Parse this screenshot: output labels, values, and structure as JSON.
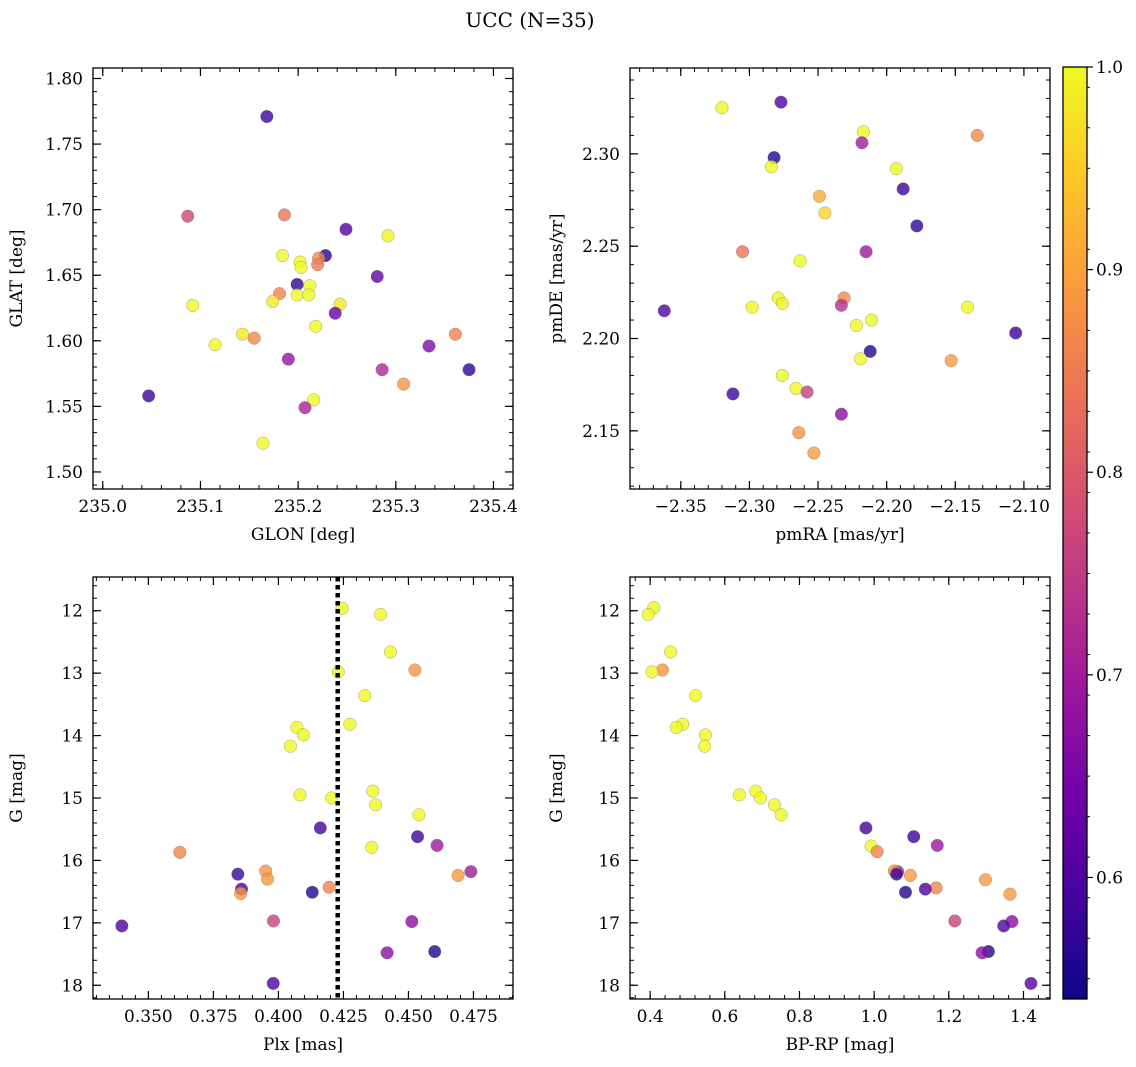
{
  "figure": {
    "title": "UCC (N=35)"
  },
  "colors": {
    "colormap": [
      "#0d0887",
      "#46039f",
      "#7201a8",
      "#9c179e",
      "#bd3786",
      "#d8576b",
      "#ed7953",
      "#fb9f3a",
      "#fdca26",
      "#f0f921"
    ],
    "marker_alpha": 0.8,
    "marker_edge": "#6b6b6b",
    "vline": "#000000"
  },
  "colorbar": {
    "min": 0.54,
    "max": 1.0,
    "ticks": [
      "0.6",
      "0.7",
      "0.8",
      "0.9",
      "1.0"
    ]
  },
  "chart_data": [
    {
      "type": "scatter",
      "id": "sky",
      "xlabel": "GLON [deg]",
      "ylabel": "GLAT [deg]",
      "xlim": [
        234.99,
        235.42
      ],
      "ylim": [
        1.487,
        1.808
      ],
      "xticks": [
        "235.0",
        "235.1",
        "235.2",
        "235.3",
        "235.4"
      ],
      "yticks": [
        "1.50",
        "1.55",
        "1.60",
        "1.65",
        "1.70",
        "1.75",
        "1.80"
      ],
      "invert_y": false,
      "points": [
        {
          "x": 235.168,
          "y": 1.771,
          "c": 0.58
        },
        {
          "x": 235.087,
          "y": 1.695,
          "c": 0.77
        },
        {
          "x": 235.186,
          "y": 1.696,
          "c": 0.84
        },
        {
          "x": 235.249,
          "y": 1.685,
          "c": 0.6
        },
        {
          "x": 235.292,
          "y": 1.68,
          "c": 0.99
        },
        {
          "x": 235.228,
          "y": 1.665,
          "c": 0.56
        },
        {
          "x": 235.184,
          "y": 1.665,
          "c": 1.0
        },
        {
          "x": 235.221,
          "y": 1.663,
          "c": 0.87
        },
        {
          "x": 235.202,
          "y": 1.66,
          "c": 1.0
        },
        {
          "x": 235.22,
          "y": 1.658,
          "c": 0.85
        },
        {
          "x": 235.203,
          "y": 1.656,
          "c": 1.0
        },
        {
          "x": 235.281,
          "y": 1.649,
          "c": 0.62
        },
        {
          "x": 235.199,
          "y": 1.643,
          "c": 0.57
        },
        {
          "x": 235.212,
          "y": 1.642,
          "c": 1.0
        },
        {
          "x": 235.181,
          "y": 1.636,
          "c": 0.86
        },
        {
          "x": 235.199,
          "y": 1.635,
          "c": 1.0
        },
        {
          "x": 235.211,
          "y": 1.635,
          "c": 1.0
        },
        {
          "x": 235.174,
          "y": 1.63,
          "c": 0.98
        },
        {
          "x": 235.243,
          "y": 1.628,
          "c": 0.98
        },
        {
          "x": 235.092,
          "y": 1.627,
          "c": 1.0
        },
        {
          "x": 235.238,
          "y": 1.621,
          "c": 0.63
        },
        {
          "x": 235.218,
          "y": 1.611,
          "c": 1.0
        },
        {
          "x": 235.361,
          "y": 1.605,
          "c": 0.86
        },
        {
          "x": 235.143,
          "y": 1.605,
          "c": 0.98
        },
        {
          "x": 235.155,
          "y": 1.602,
          "c": 0.87
        },
        {
          "x": 235.115,
          "y": 1.597,
          "c": 1.0
        },
        {
          "x": 235.334,
          "y": 1.596,
          "c": 0.66
        },
        {
          "x": 235.19,
          "y": 1.586,
          "c": 0.68
        },
        {
          "x": 235.286,
          "y": 1.578,
          "c": 0.72
        },
        {
          "x": 235.375,
          "y": 1.578,
          "c": 0.57
        },
        {
          "x": 235.308,
          "y": 1.567,
          "c": 0.88
        },
        {
          "x": 235.047,
          "y": 1.558,
          "c": 0.58
        },
        {
          "x": 235.216,
          "y": 1.555,
          "c": 1.0
        },
        {
          "x": 235.207,
          "y": 1.549,
          "c": 0.71
        },
        {
          "x": 235.164,
          "y": 1.522,
          "c": 1.0
        }
      ]
    },
    {
      "type": "scatter",
      "id": "pm",
      "xlabel": "pmRA [mas/yr]",
      "ylabel": "pmDE [mas/yr]",
      "xlim": [
        -2.387,
        -2.081
      ],
      "ylim": [
        2.1185,
        2.3465
      ],
      "xticks": [
        "−2.35",
        "−2.30",
        "−2.25",
        "−2.20",
        "−2.15",
        "−2.10"
      ],
      "yticks": [
        "2.15",
        "2.20",
        "2.25",
        "2.30"
      ],
      "invert_y": false,
      "points": [
        {
          "x": -2.32,
          "y": 2.325,
          "c": 1.0
        },
        {
          "x": -2.277,
          "y": 2.328,
          "c": 0.6
        },
        {
          "x": -2.217,
          "y": 2.312,
          "c": 1.0
        },
        {
          "x": -2.134,
          "y": 2.31,
          "c": 0.87
        },
        {
          "x": -2.218,
          "y": 2.306,
          "c": 0.7
        },
        {
          "x": -2.282,
          "y": 2.298,
          "c": 0.56
        },
        {
          "x": -2.284,
          "y": 2.293,
          "c": 1.0
        },
        {
          "x": -2.193,
          "y": 2.292,
          "c": 1.0
        },
        {
          "x": -2.188,
          "y": 2.281,
          "c": 0.58
        },
        {
          "x": -2.249,
          "y": 2.277,
          "c": 0.91
        },
        {
          "x": -2.245,
          "y": 2.268,
          "c": 0.96
        },
        {
          "x": -2.178,
          "y": 2.261,
          "c": 0.57
        },
        {
          "x": -2.305,
          "y": 2.247,
          "c": 0.84
        },
        {
          "x": -2.215,
          "y": 2.247,
          "c": 0.69
        },
        {
          "x": -2.263,
          "y": 2.242,
          "c": 1.0
        },
        {
          "x": -2.362,
          "y": 2.215,
          "c": 0.6
        },
        {
          "x": -2.279,
          "y": 2.222,
          "c": 1.0
        },
        {
          "x": -2.231,
          "y": 2.222,
          "c": 0.87
        },
        {
          "x": -2.276,
          "y": 2.219,
          "c": 0.99
        },
        {
          "x": -2.233,
          "y": 2.218,
          "c": 0.73
        },
        {
          "x": -2.298,
          "y": 2.217,
          "c": 1.0
        },
        {
          "x": -2.141,
          "y": 2.217,
          "c": 1.0
        },
        {
          "x": -2.211,
          "y": 2.21,
          "c": 1.0
        },
        {
          "x": -2.222,
          "y": 2.207,
          "c": 1.0
        },
        {
          "x": -2.106,
          "y": 2.203,
          "c": 0.58
        },
        {
          "x": -2.212,
          "y": 2.193,
          "c": 0.56
        },
        {
          "x": -2.219,
          "y": 2.189,
          "c": 1.0
        },
        {
          "x": -2.153,
          "y": 2.188,
          "c": 0.89
        },
        {
          "x": -2.276,
          "y": 2.18,
          "c": 1.0
        },
        {
          "x": -2.266,
          "y": 2.173,
          "c": 1.0
        },
        {
          "x": -2.258,
          "y": 2.171,
          "c": 0.76
        },
        {
          "x": -2.312,
          "y": 2.17,
          "c": 0.58
        },
        {
          "x": -2.233,
          "y": 2.159,
          "c": 0.67
        },
        {
          "x": -2.264,
          "y": 2.149,
          "c": 0.88
        },
        {
          "x": -2.253,
          "y": 2.138,
          "c": 0.89
        }
      ]
    },
    {
      "type": "scatter",
      "id": "plx",
      "xlabel": "Plx [mas]",
      "ylabel": "G [mag]",
      "xlim": [
        0.3287,
        0.4902
      ],
      "ylim": [
        11.46,
        18.22
      ],
      "xticks": [
        "0.350",
        "0.375",
        "0.400",
        "0.425",
        "0.450",
        "0.475"
      ],
      "yticks": [
        "12",
        "13",
        "14",
        "15",
        "16",
        "17",
        "18"
      ],
      "invert_y": true,
      "vline": 0.4228,
      "points": [
        {
          "x": 0.4245,
          "y": 11.96,
          "c": 1.0
        },
        {
          "x": 0.4393,
          "y": 12.06,
          "c": 1.0
        },
        {
          "x": 0.4431,
          "y": 12.66,
          "c": 1.0
        },
        {
          "x": 0.4525,
          "y": 12.95,
          "c": 0.88
        },
        {
          "x": 0.423,
          "y": 12.98,
          "c": 1.0
        },
        {
          "x": 0.4332,
          "y": 13.36,
          "c": 1.0
        },
        {
          "x": 0.4275,
          "y": 13.82,
          "c": 1.0
        },
        {
          "x": 0.4071,
          "y": 13.87,
          "c": 1.0
        },
        {
          "x": 0.4096,
          "y": 13.99,
          "c": 1.0
        },
        {
          "x": 0.4046,
          "y": 14.17,
          "c": 1.0
        },
        {
          "x": 0.4363,
          "y": 14.89,
          "c": 1.0
        },
        {
          "x": 0.4083,
          "y": 14.95,
          "c": 1.0
        },
        {
          "x": 0.4205,
          "y": 15.0,
          "c": 1.0
        },
        {
          "x": 0.4374,
          "y": 15.11,
          "c": 1.0
        },
        {
          "x": 0.454,
          "y": 15.27,
          "c": 1.0
        },
        {
          "x": 0.4161,
          "y": 15.48,
          "c": 0.59
        },
        {
          "x": 0.4535,
          "y": 15.62,
          "c": 0.58
        },
        {
          "x": 0.4359,
          "y": 15.79,
          "c": 1.0
        },
        {
          "x": 0.461,
          "y": 15.76,
          "c": 0.69
        },
        {
          "x": 0.3621,
          "y": 15.87,
          "c": 0.86
        },
        {
          "x": 0.474,
          "y": 16.18,
          "c": 0.7
        },
        {
          "x": 0.3951,
          "y": 16.17,
          "c": 0.88
        },
        {
          "x": 0.3844,
          "y": 16.22,
          "c": 0.58
        },
        {
          "x": 0.4691,
          "y": 16.24,
          "c": 0.89
        },
        {
          "x": 0.3958,
          "y": 16.3,
          "c": 0.89
        },
        {
          "x": 0.4195,
          "y": 16.43,
          "c": 0.86
        },
        {
          "x": 0.3858,
          "y": 16.46,
          "c": 0.6
        },
        {
          "x": 0.413,
          "y": 16.51,
          "c": 0.56
        },
        {
          "x": 0.3855,
          "y": 16.53,
          "c": 0.89
        },
        {
          "x": 0.3981,
          "y": 16.97,
          "c": 0.76
        },
        {
          "x": 0.4513,
          "y": 16.98,
          "c": 0.67
        },
        {
          "x": 0.3398,
          "y": 17.05,
          "c": 0.6
        },
        {
          "x": 0.4601,
          "y": 17.46,
          "c": 0.56
        },
        {
          "x": 0.4418,
          "y": 17.48,
          "c": 0.67
        },
        {
          "x": 0.398,
          "y": 17.97,
          "c": 0.6
        }
      ]
    },
    {
      "type": "scatter",
      "id": "cmd",
      "xlabel": "BP-RP [mag]",
      "ylabel": "G [mag]",
      "xlim": [
        0.346,
        1.471
      ],
      "ylim": [
        11.46,
        18.22
      ],
      "xticks": [
        "0.4",
        "0.6",
        "0.8",
        "1.0",
        "1.2",
        "1.4"
      ],
      "yticks": [
        "12",
        "13",
        "14",
        "15",
        "16",
        "17",
        "18"
      ],
      "invert_y": true,
      "points": [
        {
          "x": 0.41,
          "y": 11.95,
          "c": 1.0
        },
        {
          "x": 0.395,
          "y": 12.06,
          "c": 1.0
        },
        {
          "x": 0.455,
          "y": 12.66,
          "c": 1.0
        },
        {
          "x": 0.433,
          "y": 12.95,
          "c": 0.88
        },
        {
          "x": 0.405,
          "y": 12.98,
          "c": 1.0
        },
        {
          "x": 0.522,
          "y": 13.36,
          "c": 1.0
        },
        {
          "x": 0.487,
          "y": 13.82,
          "c": 1.0
        },
        {
          "x": 0.47,
          "y": 13.87,
          "c": 1.0
        },
        {
          "x": 0.548,
          "y": 13.99,
          "c": 1.0
        },
        {
          "x": 0.546,
          "y": 14.17,
          "c": 1.0
        },
        {
          "x": 0.683,
          "y": 14.89,
          "c": 1.0
        },
        {
          "x": 0.639,
          "y": 14.95,
          "c": 1.0
        },
        {
          "x": 0.696,
          "y": 15.0,
          "c": 1.0
        },
        {
          "x": 0.733,
          "y": 15.11,
          "c": 1.0
        },
        {
          "x": 0.751,
          "y": 15.27,
          "c": 1.0
        },
        {
          "x": 0.978,
          "y": 15.48,
          "c": 0.59
        },
        {
          "x": 1.106,
          "y": 15.62,
          "c": 0.58
        },
        {
          "x": 0.992,
          "y": 15.77,
          "c": 1.0
        },
        {
          "x": 1.169,
          "y": 15.76,
          "c": 0.69
        },
        {
          "x": 1.008,
          "y": 15.86,
          "c": 0.86
        },
        {
          "x": 1.063,
          "y": 16.18,
          "c": 0.7
        },
        {
          "x": 1.054,
          "y": 16.17,
          "c": 0.88
        },
        {
          "x": 1.06,
          "y": 16.22,
          "c": 0.58
        },
        {
          "x": 1.097,
          "y": 16.24,
          "c": 0.89
        },
        {
          "x": 1.298,
          "y": 16.31,
          "c": 0.89
        },
        {
          "x": 1.166,
          "y": 16.44,
          "c": 0.86
        },
        {
          "x": 1.137,
          "y": 16.46,
          "c": 0.6
        },
        {
          "x": 1.084,
          "y": 16.51,
          "c": 0.56
        },
        {
          "x": 1.364,
          "y": 16.54,
          "c": 0.89
        },
        {
          "x": 1.216,
          "y": 16.97,
          "c": 0.76
        },
        {
          "x": 1.369,
          "y": 16.98,
          "c": 0.67
        },
        {
          "x": 1.347,
          "y": 17.05,
          "c": 0.6
        },
        {
          "x": 1.306,
          "y": 17.46,
          "c": 0.56
        },
        {
          "x": 1.289,
          "y": 17.48,
          "c": 0.67
        },
        {
          "x": 1.42,
          "y": 17.97,
          "c": 0.6
        }
      ]
    }
  ]
}
